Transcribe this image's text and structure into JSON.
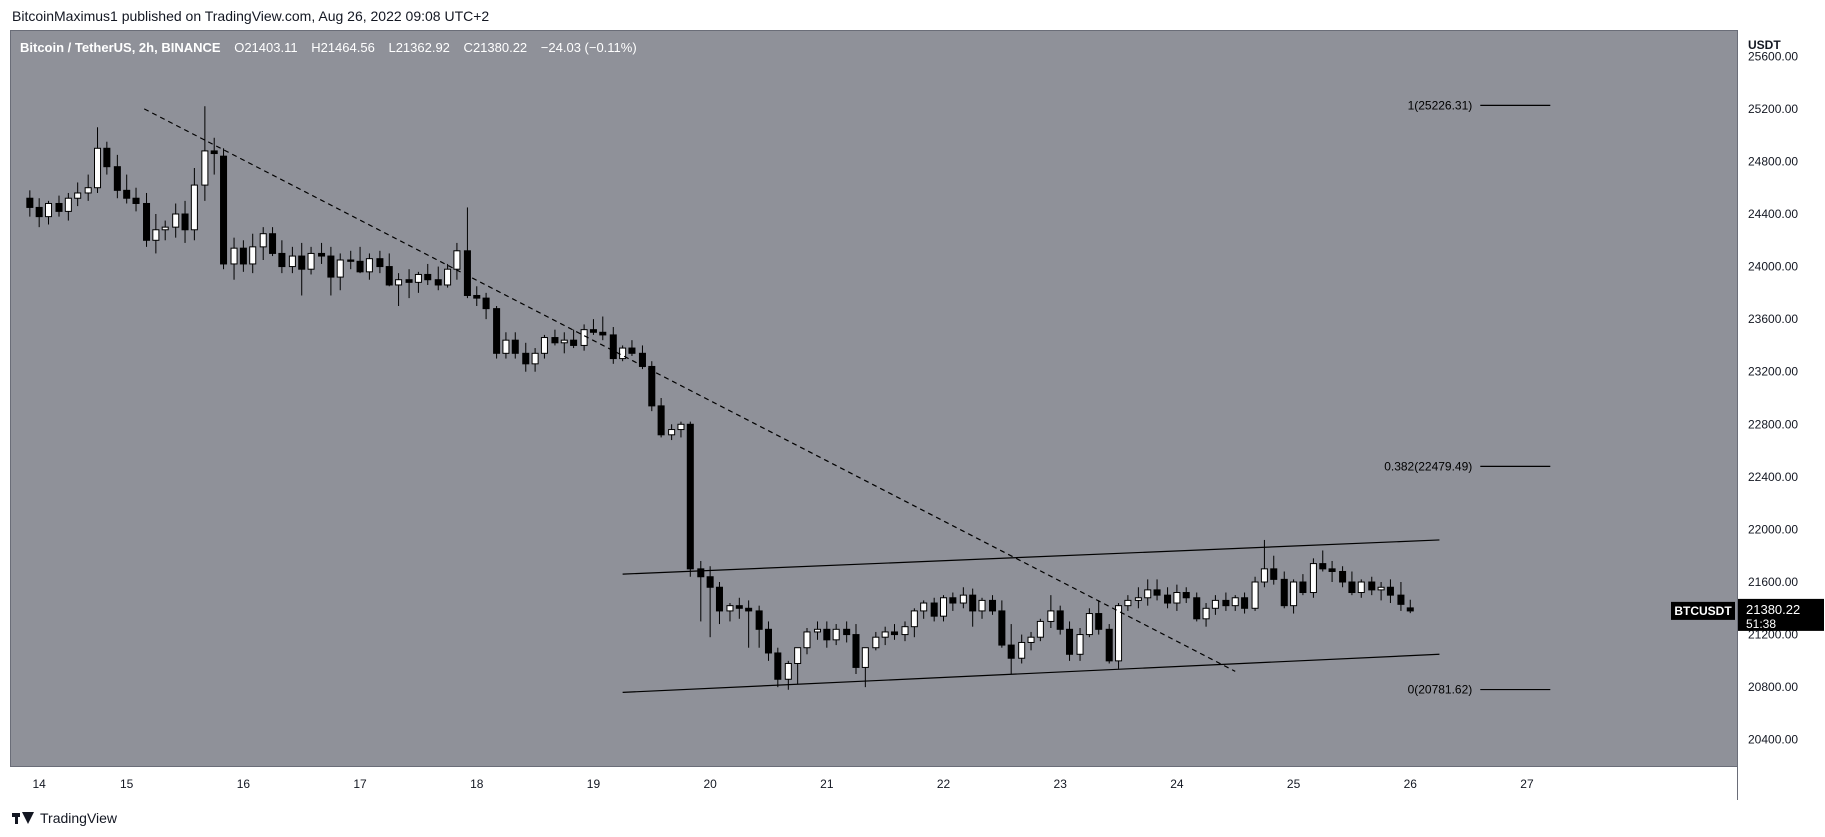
{
  "header": {
    "published": "BitcoinMaximus1 published on TradingView.com, Aug 26, 2022 09:08 UTC+2"
  },
  "legend": {
    "title": "Bitcoin / TetherUS, 2h, BINANCE",
    "o_label": "O",
    "o": "21403.11",
    "h_label": "H",
    "h": "21464.56",
    "l_label": "L",
    "l": "21362.92",
    "c_label": "C",
    "c": "21380.22",
    "change": "−24.03 (−0.11%)"
  },
  "footer": {
    "brand": "TradingView"
  },
  "colors": {
    "background": "#8f9199",
    "up": "#ffffff",
    "down": "#000000",
    "line": "#000000"
  },
  "chart_data": {
    "type": "candlestick",
    "symbol": "BTCUSDT",
    "yaxis_unit": "USDT",
    "ylim": [
      20200,
      25800
    ],
    "y_ticks": [
      20400,
      20800,
      21200,
      21600,
      22000,
      22400,
      22800,
      23200,
      23600,
      24000,
      24400,
      24800,
      25200,
      25600
    ],
    "x_ticks": [
      {
        "label": "14",
        "x": 13.25
      },
      {
        "label": "15",
        "x": 14
      },
      {
        "label": "16",
        "x": 15
      },
      {
        "label": "17",
        "x": 16
      },
      {
        "label": "18",
        "x": 17
      },
      {
        "label": "19",
        "x": 18
      },
      {
        "label": "20",
        "x": 19
      },
      {
        "label": "21",
        "x": 20
      },
      {
        "label": "22",
        "x": 21
      },
      {
        "label": "23",
        "x": 22
      },
      {
        "label": "24",
        "x": 23
      },
      {
        "label": "25",
        "x": 24
      },
      {
        "label": "26",
        "x": 25
      },
      {
        "label": "27",
        "x": 26
      }
    ],
    "xlim": [
      13.0,
      27.8
    ],
    "price_label": {
      "symbol": "BTCUSDT",
      "price": "21380.22",
      "countdown": "51:38",
      "value": 21380.22
    },
    "fib_levels": [
      {
        "label": "1(25226.31)",
        "value": 25226.31
      },
      {
        "label": "0.382(22479.49)",
        "value": 22479.49
      },
      {
        "label": "0(20781.62)",
        "value": 20781.62
      }
    ],
    "fib_x_range": [
      25.6,
      26.2
    ],
    "trendlines": [
      {
        "style": "dashed",
        "points": [
          [
            14.15,
            25200
          ],
          [
            23.5,
            20920
          ]
        ]
      },
      {
        "style": "solid",
        "points": [
          [
            18.25,
            21660
          ],
          [
            25.25,
            21920
          ]
        ]
      },
      {
        "style": "solid",
        "points": [
          [
            18.25,
            20760
          ],
          [
            25.25,
            21050
          ]
        ]
      }
    ],
    "candles": [
      [
        13.17,
        24520,
        24580,
        24380,
        24450
      ],
      [
        13.25,
        24450,
        24520,
        24300,
        24380
      ],
      [
        13.33,
        24380,
        24500,
        24320,
        24480
      ],
      [
        13.42,
        24480,
        24540,
        24380,
        24420
      ],
      [
        13.5,
        24420,
        24560,
        24350,
        24520
      ],
      [
        13.58,
        24520,
        24640,
        24460,
        24560
      ],
      [
        13.67,
        24560,
        24700,
        24500,
        24600
      ],
      [
        13.75,
        24600,
        25060,
        24560,
        24900
      ],
      [
        13.83,
        24900,
        24950,
        24700,
        24760
      ],
      [
        13.92,
        24760,
        24850,
        24520,
        24580
      ],
      [
        14.0,
        24580,
        24700,
        24480,
        24520
      ],
      [
        14.08,
        24520,
        24600,
        24420,
        24480
      ],
      [
        14.17,
        24480,
        24560,
        24150,
        24200
      ],
      [
        14.25,
        24200,
        24400,
        24100,
        24280
      ],
      [
        14.33,
        24280,
        24350,
        24200,
        24300
      ],
      [
        14.42,
        24300,
        24480,
        24220,
        24400
      ],
      [
        14.5,
        24400,
        24500,
        24180,
        24280
      ],
      [
        14.58,
        24280,
        24750,
        24200,
        24620
      ],
      [
        14.67,
        24620,
        25220,
        24500,
        24880
      ],
      [
        14.75,
        24880,
        24980,
        24700,
        24860
      ],
      [
        14.83,
        24840,
        24900,
        23980,
        24020
      ],
      [
        14.92,
        24020,
        24220,
        23900,
        24140
      ],
      [
        15.0,
        24140,
        24200,
        23960,
        24020
      ],
      [
        15.08,
        24020,
        24250,
        23950,
        24150
      ],
      [
        15.17,
        24150,
        24300,
        24050,
        24250
      ],
      [
        15.25,
        24250,
        24300,
        24080,
        24100
      ],
      [
        15.33,
        24100,
        24200,
        23950,
        24000
      ],
      [
        15.42,
        24000,
        24150,
        23950,
        24080
      ],
      [
        15.5,
        24080,
        24180,
        23780,
        23980
      ],
      [
        15.58,
        23980,
        24150,
        23940,
        24100
      ],
      [
        15.67,
        24100,
        24180,
        24020,
        24080
      ],
      [
        15.75,
        24080,
        24150,
        23780,
        23920
      ],
      [
        15.83,
        23920,
        24100,
        23820,
        24050
      ],
      [
        15.92,
        24050,
        24120,
        23980,
        24040
      ],
      [
        16.0,
        24040,
        24150,
        23950,
        23960
      ],
      [
        16.08,
        23960,
        24100,
        23900,
        24060
      ],
      [
        16.17,
        24060,
        24120,
        23950,
        24000
      ],
      [
        16.25,
        24000,
        24100,
        23850,
        23860
      ],
      [
        16.33,
        23860,
        23950,
        23700,
        23900
      ],
      [
        16.42,
        23900,
        23980,
        23760,
        23880
      ],
      [
        16.5,
        23880,
        23960,
        23800,
        23940
      ],
      [
        16.58,
        23940,
        24020,
        23860,
        23900
      ],
      [
        16.67,
        23900,
        24000,
        23820,
        23860
      ],
      [
        16.75,
        23860,
        24020,
        23840,
        23980
      ],
      [
        16.83,
        23980,
        24180,
        23900,
        24120
      ],
      [
        16.92,
        24120,
        24450,
        23760,
        23780
      ],
      [
        17.0,
        23780,
        23850,
        23700,
        23760
      ],
      [
        17.08,
        23760,
        23800,
        23600,
        23680
      ],
      [
        17.17,
        23680,
        23700,
        23300,
        23340
      ],
      [
        17.25,
        23340,
        23500,
        23300,
        23440
      ],
      [
        17.33,
        23440,
        23500,
        23300,
        23340
      ],
      [
        17.42,
        23340,
        23420,
        23200,
        23260
      ],
      [
        17.5,
        23260,
        23380,
        23200,
        23340
      ],
      [
        17.58,
        23340,
        23480,
        23300,
        23460
      ],
      [
        17.67,
        23460,
        23520,
        23400,
        23420
      ],
      [
        17.75,
        23420,
        23500,
        23340,
        23440
      ],
      [
        17.83,
        23440,
        23520,
        23380,
        23400
      ],
      [
        17.92,
        23400,
        23560,
        23360,
        23520
      ],
      [
        18.0,
        23520,
        23600,
        23480,
        23500
      ],
      [
        18.08,
        23500,
        23620,
        23440,
        23480
      ],
      [
        18.17,
        23480,
        23540,
        23260,
        23300
      ],
      [
        18.25,
        23300,
        23400,
        23280,
        23380
      ],
      [
        18.33,
        23380,
        23440,
        23320,
        23340
      ],
      [
        18.42,
        23340,
        23400,
        23220,
        23240
      ],
      [
        18.5,
        23240,
        23280,
        22900,
        22940
      ],
      [
        18.58,
        22940,
        23000,
        22700,
        22720
      ],
      [
        18.67,
        22720,
        22800,
        22680,
        22760
      ],
      [
        18.75,
        22760,
        22820,
        22700,
        22800
      ],
      [
        18.83,
        22800,
        22820,
        21640,
        21700
      ],
      [
        18.92,
        21700,
        21760,
        21300,
        21640
      ],
      [
        19.0,
        21640,
        21720,
        21180,
        21560
      ],
      [
        19.08,
        21560,
        21600,
        21280,
        21380
      ],
      [
        19.17,
        21380,
        21440,
        21300,
        21420
      ],
      [
        19.25,
        21420,
        21480,
        21320,
        21400
      ],
      [
        19.33,
        21400,
        21460,
        21100,
        21380
      ],
      [
        19.42,
        21380,
        21420,
        21100,
        21240
      ],
      [
        19.5,
        21240,
        21300,
        21000,
        21060
      ],
      [
        19.58,
        21060,
        21100,
        20800,
        20860
      ],
      [
        19.67,
        20860,
        21000,
        20780,
        20980
      ],
      [
        19.75,
        20980,
        21100,
        20820,
        21100
      ],
      [
        19.83,
        21100,
        21250,
        21050,
        21220
      ],
      [
        19.92,
        21220,
        21300,
        21160,
        21240
      ],
      [
        20.0,
        21240,
        21300,
        21100,
        21160
      ],
      [
        20.08,
        21160,
        21280,
        21120,
        21240
      ],
      [
        20.17,
        21240,
        21300,
        21140,
        21200
      ],
      [
        20.25,
        21200,
        21280,
        20900,
        20950
      ],
      [
        20.33,
        20950,
        21100,
        20800,
        21100
      ],
      [
        20.42,
        21100,
        21220,
        21080,
        21180
      ],
      [
        20.5,
        21180,
        21260,
        21120,
        21220
      ],
      [
        20.58,
        21220,
        21280,
        21160,
        21200
      ],
      [
        20.67,
        21200,
        21300,
        21150,
        21260
      ],
      [
        20.75,
        21260,
        21400,
        21180,
        21380
      ],
      [
        20.83,
        21380,
        21460,
        21320,
        21440
      ],
      [
        20.92,
        21440,
        21480,
        21300,
        21340
      ],
      [
        21.0,
        21340,
        21500,
        21300,
        21480
      ],
      [
        21.08,
        21480,
        21520,
        21380,
        21440
      ],
      [
        21.17,
        21440,
        21560,
        21400,
        21500
      ],
      [
        21.25,
        21500,
        21550,
        21260,
        21380
      ],
      [
        21.33,
        21380,
        21480,
        21320,
        21460
      ],
      [
        21.42,
        21460,
        21500,
        21350,
        21380
      ],
      [
        21.5,
        21380,
        21460,
        21100,
        21120
      ],
      [
        21.58,
        21120,
        21280,
        20900,
        21020
      ],
      [
        21.67,
        21020,
        21200,
        20980,
        21140
      ],
      [
        21.75,
        21140,
        21220,
        21080,
        21180
      ],
      [
        21.83,
        21180,
        21320,
        21150,
        21300
      ],
      [
        21.92,
        21300,
        21500,
        21250,
        21380
      ],
      [
        22.0,
        21380,
        21420,
        21200,
        21240
      ],
      [
        22.08,
        21240,
        21300,
        21000,
        21050
      ],
      [
        22.17,
        21050,
        21250,
        21000,
        21200
      ],
      [
        22.25,
        21200,
        21400,
        21180,
        21360
      ],
      [
        22.33,
        21360,
        21460,
        21200,
        21240
      ],
      [
        22.42,
        21240,
        21280,
        20980,
        21000
      ],
      [
        22.5,
        21000,
        21440,
        20940,
        21420
      ],
      [
        22.58,
        21420,
        21500,
        21380,
        21460
      ],
      [
        22.67,
        21460,
        21560,
        21400,
        21480
      ],
      [
        22.75,
        21480,
        21620,
        21420,
        21540
      ],
      [
        22.83,
        21540,
        21620,
        21460,
        21500
      ],
      [
        22.92,
        21500,
        21560,
        21400,
        21440
      ],
      [
        23.0,
        21440,
        21580,
        21380,
        21520
      ],
      [
        23.08,
        21520,
        21560,
        21440,
        21480
      ],
      [
        23.17,
        21480,
        21520,
        21300,
        21320
      ],
      [
        23.25,
        21320,
        21440,
        21260,
        21400
      ],
      [
        23.33,
        21400,
        21500,
        21350,
        21460
      ],
      [
        23.42,
        21460,
        21520,
        21380,
        21420
      ],
      [
        23.5,
        21420,
        21500,
        21380,
        21480
      ],
      [
        23.58,
        21480,
        21520,
        21360,
        21400
      ],
      [
        23.67,
        21400,
        21640,
        21380,
        21600
      ],
      [
        23.75,
        21600,
        21920,
        21560,
        21700
      ],
      [
        23.83,
        21700,
        21800,
        21580,
        21620
      ],
      [
        23.92,
        21620,
        21680,
        21400,
        21420
      ],
      [
        24.0,
        21420,
        21620,
        21360,
        21600
      ],
      [
        24.08,
        21600,
        21660,
        21500,
        21520
      ],
      [
        24.17,
        21520,
        21780,
        21480,
        21740
      ],
      [
        24.25,
        21740,
        21840,
        21680,
        21700
      ],
      [
        24.33,
        21700,
        21760,
        21600,
        21680
      ],
      [
        24.42,
        21680,
        21720,
        21560,
        21600
      ],
      [
        24.5,
        21600,
        21680,
        21500,
        21520
      ],
      [
        24.58,
        21520,
        21620,
        21480,
        21600
      ],
      [
        24.67,
        21600,
        21640,
        21500,
        21540
      ],
      [
        24.75,
        21540,
        21600,
        21460,
        21560
      ],
      [
        24.83,
        21560,
        21620,
        21440,
        21500
      ],
      [
        24.92,
        21500,
        21600,
        21380,
        21430
      ],
      [
        25.0,
        21403,
        21465,
        21363,
        21380
      ]
    ]
  }
}
